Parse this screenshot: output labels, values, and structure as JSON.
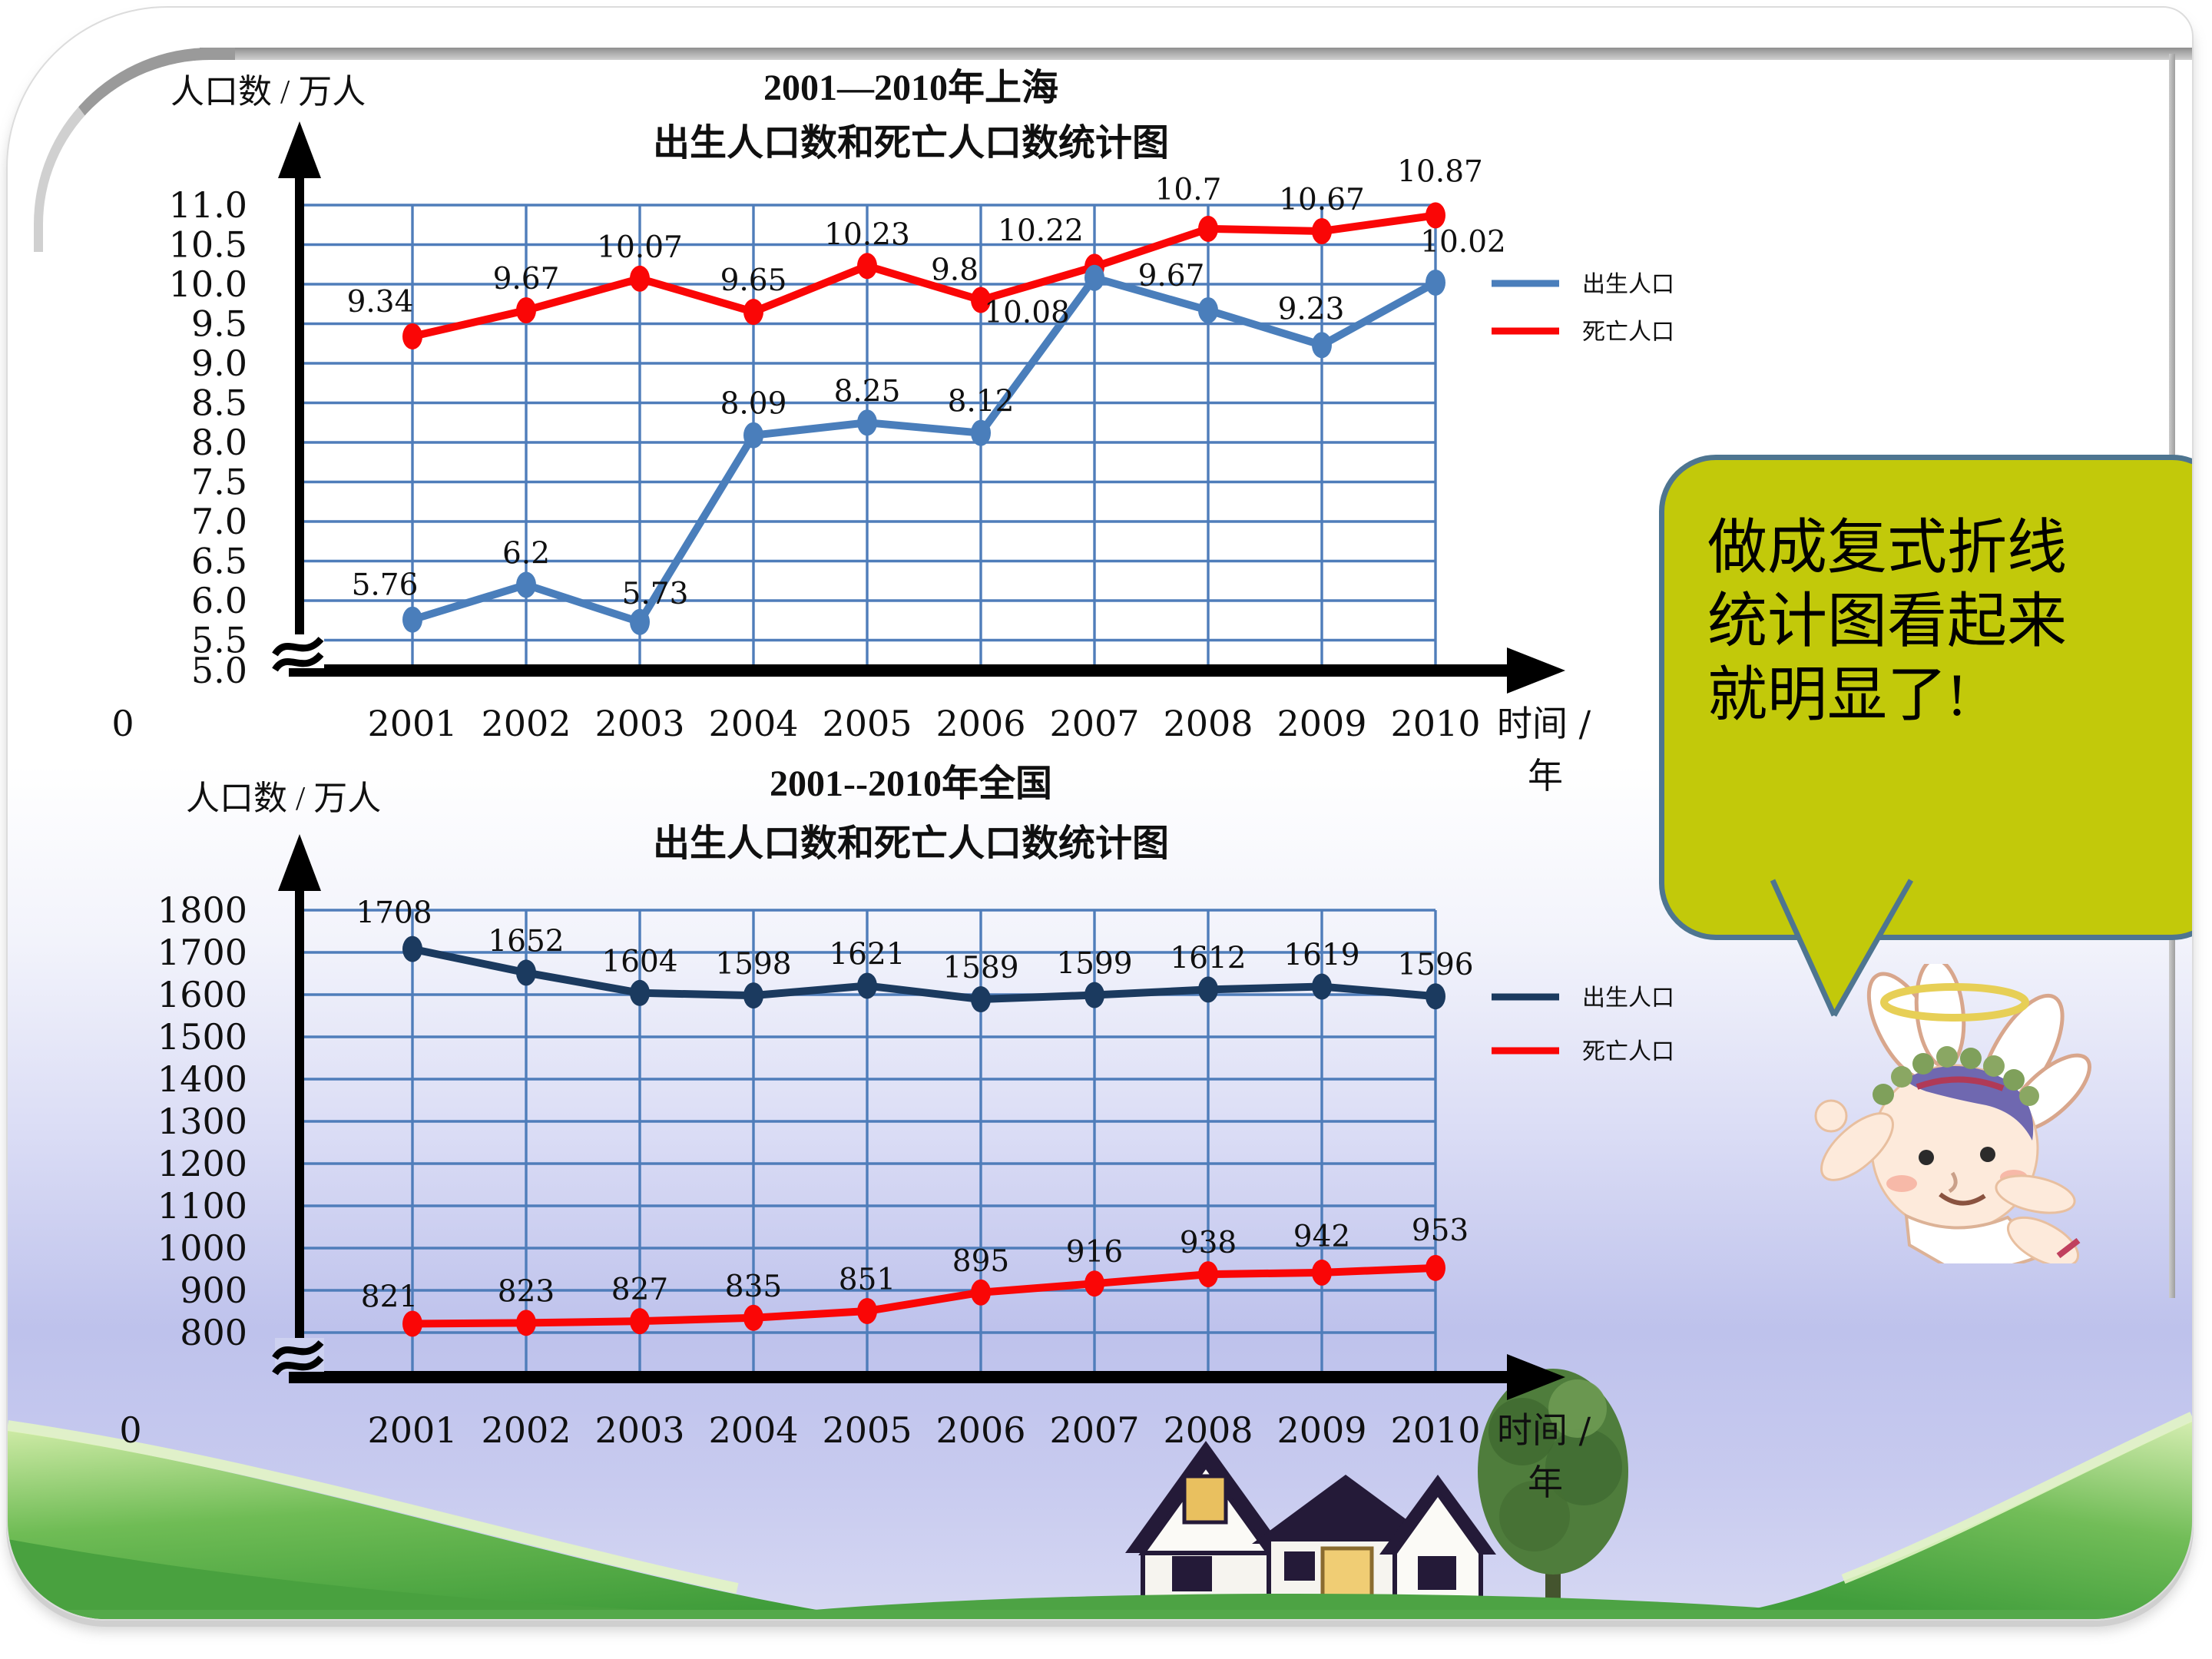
{
  "slide": {
    "speech_bubble": {
      "lines": [
        "做成复式折线",
        "统计图看起来",
        "就明显了!"
      ],
      "fill_color": "#c2c90a",
      "border_color": "#4e7590"
    }
  },
  "chart_data": [
    {
      "id": "shanghai",
      "type": "line",
      "title_lines": [
        "2001—2010年上海",
        "出生人口数和死亡人口数统计图"
      ],
      "y_axis_unit": "人口数 / 万人",
      "x_axis_unit_lines": [
        "时间 /",
        "年"
      ],
      "origin_label": "0",
      "categories": [
        "2001",
        "2002",
        "2003",
        "2004",
        "2005",
        "2006",
        "2007",
        "2008",
        "2009",
        "2010"
      ],
      "ylim": [
        5.0,
        11.0
      ],
      "y_ticks": [
        11,
        10.5,
        10,
        9.5,
        9,
        8.5,
        8,
        7.5,
        7,
        6.5,
        6,
        5.5
      ],
      "y_tick_labels": [
        "11.0",
        "10.5",
        "10.0",
        "9.5",
        "9.0",
        "8.5",
        "8.0",
        "7.5",
        "7.0",
        "6.5",
        "6.0",
        "5.5"
      ],
      "axis_tick_label": "5.0",
      "axis_break": true,
      "grid": true,
      "legend_position": "right",
      "series": [
        {
          "name": "出生人口",
          "color": "#4a7ebb",
          "values": [
            5.76,
            6.2,
            5.73,
            8.09,
            8.25,
            8.12,
            10.08,
            9.67,
            9.23,
            10.02
          ],
          "labels": [
            "5.76",
            "6.2",
            "5.73",
            "8.09",
            "8.25",
            "8.12",
            "10.08",
            "9.67",
            "9.23",
            "10.02"
          ]
        },
        {
          "name": "死亡人口",
          "color": "#fa0606",
          "values": [
            9.34,
            9.67,
            10.07,
            9.65,
            10.23,
            9.8,
            10.22,
            10.7,
            10.67,
            10.87
          ],
          "labels": [
            "9.34",
            "9.67",
            "10.07",
            "9.65",
            "10.23",
            "9.8",
            "10.22",
            "10.7",
            "10.67",
            "10.87"
          ]
        }
      ]
    },
    {
      "id": "national",
      "type": "line",
      "title_lines": [
        "2001--2010年全国",
        "出生人口数和死亡人口数统计图"
      ],
      "y_axis_unit": "人口数 / 万人",
      "x_axis_unit_lines": [
        "时间 /",
        "年"
      ],
      "origin_label": "0",
      "categories": [
        "2001",
        "2002",
        "2003",
        "2004",
        "2005",
        "2006",
        "2007",
        "2008",
        "2009",
        "2010"
      ],
      "ylim": [
        800,
        1800
      ],
      "y_ticks": [
        1800,
        1700,
        1600,
        1500,
        1400,
        1300,
        1200,
        1100,
        1000,
        900,
        800
      ],
      "y_tick_labels": [
        "1800",
        "1700",
        "1600",
        "1500",
        "1400",
        "1300",
        "1200",
        "1100",
        "1000",
        "900",
        "800"
      ],
      "axis_tick_label": "",
      "axis_break": true,
      "grid": true,
      "legend_position": "right",
      "series": [
        {
          "name": "出生人口",
          "color": "#1b3a5f",
          "values": [
            1708,
            1652,
            1604,
            1598,
            1621,
            1589,
            1599,
            1612,
            1619,
            1596
          ],
          "labels": [
            "1708",
            "1652",
            "1604",
            "1598",
            "1621",
            "1589",
            "1599",
            "1612",
            "1619",
            "1596"
          ]
        },
        {
          "name": "死亡人口",
          "color": "#fa0606",
          "values": [
            821,
            823,
            827,
            835,
            851,
            895,
            916,
            938,
            942,
            953
          ],
          "labels": [
            "821",
            "823",
            "827",
            "835",
            "851",
            "895",
            "916",
            "938",
            "942",
            "953"
          ]
        }
      ]
    }
  ]
}
